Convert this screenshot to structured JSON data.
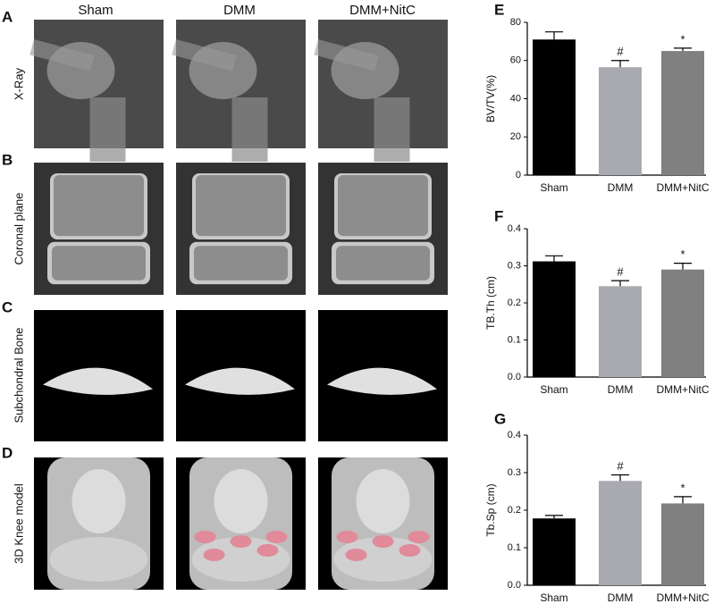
{
  "figure": {
    "columns": [
      "Sham",
      "DMM",
      "DMM+NitC"
    ],
    "panels": [
      "A",
      "B",
      "C",
      "D"
    ],
    "rows": [
      "X-Ray",
      "Coronal plane",
      "Subchondral Bone",
      "3D Knee model"
    ]
  },
  "chart_data": [
    {
      "type": "bar",
      "panel": "E",
      "y_label": "BV/TV(%)",
      "categories": [
        "Sham",
        "DMM",
        "DMM+NitC"
      ],
      "values": [
        71,
        56.5,
        65
      ],
      "errors": [
        4,
        3.5,
        1.5
      ],
      "markers": [
        null,
        "#",
        "*"
      ],
      "colors": [
        "#000000",
        "#a9a9b0",
        "#808080"
      ],
      "ylim": [
        0,
        80
      ],
      "yticks": [
        0,
        20,
        40,
        60,
        80
      ]
    },
    {
      "type": "bar",
      "panel": "F",
      "y_label": "TB.Th (cm)",
      "categories": [
        "Sham",
        "DMM",
        "DMM+NitC"
      ],
      "values": [
        0.312,
        0.245,
        0.29
      ],
      "errors": [
        0.015,
        0.015,
        0.017
      ],
      "markers": [
        null,
        "#",
        "*"
      ],
      "colors": [
        "#000000",
        "#a9a9b0",
        "#808080"
      ],
      "ylim": [
        0,
        0.4
      ],
      "yticks": [
        {
          "value": 0,
          "label": "0.0"
        },
        0.1,
        0.2,
        0.3,
        0.4
      ]
    },
    {
      "type": "bar",
      "panel": "G",
      "y_label": "Tb.Sp (cm)",
      "categories": [
        "Sham",
        "DMM",
        "DMM+NitC"
      ],
      "values": [
        0.178,
        0.278,
        0.218
      ],
      "errors": [
        0.008,
        0.016,
        0.018
      ],
      "markers": [
        null,
        "#",
        "*"
      ],
      "colors": [
        "#000000",
        "#a9a9b0",
        "#808080"
      ],
      "ylim": [
        0,
        0.4
      ],
      "yticks": [
        {
          "value": 0,
          "label": "0.0"
        },
        0.1,
        0.2,
        0.3,
        0.4
      ]
    }
  ]
}
